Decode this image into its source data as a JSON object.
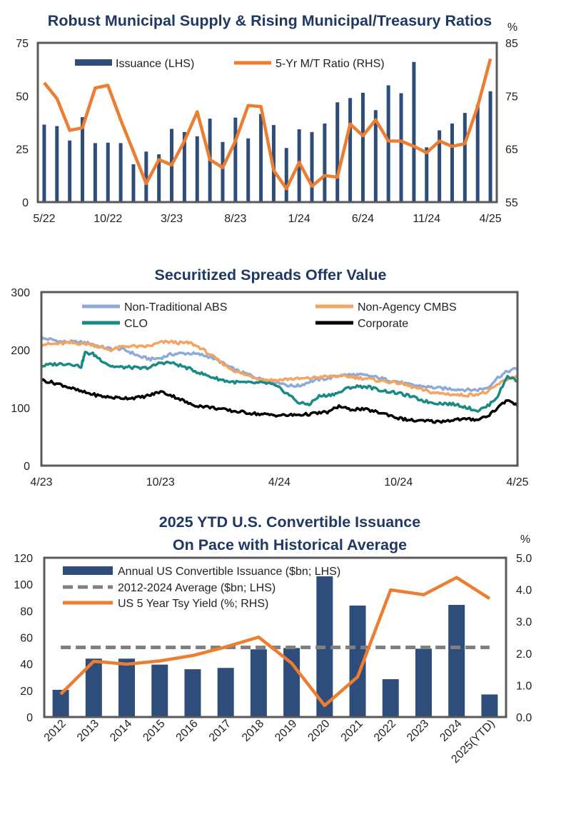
{
  "chart_data": [
    {
      "type": "bar+line",
      "title": "Robust Municipal Supply & Rising Municipal/Treasury Ratios",
      "right_unit": "%",
      "x": [
        "5/22",
        "6/22",
        "7/22",
        "8/22",
        "9/22",
        "10/22",
        "11/22",
        "12/22",
        "1/23",
        "2/23",
        "3/23",
        "4/23",
        "5/23",
        "6/23",
        "7/23",
        "8/23",
        "9/23",
        "10/23",
        "11/23",
        "12/23",
        "1/24",
        "2/24",
        "3/24",
        "4/24",
        "5/24",
        "6/24",
        "7/24",
        "8/24",
        "9/24",
        "10/24",
        "11/24",
        "12/24",
        "1/25",
        "2/25",
        "3/25",
        "4/25"
      ],
      "xtick_labels": [
        "5/22",
        "10/22",
        "3/23",
        "8/23",
        "1/24",
        "6/24",
        "11/24",
        "4/25"
      ],
      "xtick_indices": [
        0,
        5,
        10,
        15,
        20,
        25,
        30,
        35
      ],
      "series": [
        {
          "name": "Issuance (LHS)",
          "axis": "left",
          "kind": "bar",
          "color": "#2e4d7b",
          "values": [
            36.5,
            35.8,
            29,
            40,
            27.8,
            28,
            27.8,
            17.8,
            23.8,
            22.5,
            34.5,
            33,
            31,
            39.3,
            28.3,
            39.8,
            30,
            41.5,
            36.3,
            25.5,
            34.3,
            33,
            37,
            47,
            49,
            51.5,
            43.3,
            55,
            51.3,
            66,
            25.8,
            33.8,
            37,
            42,
            45.8,
            52.2
          ]
        },
        {
          "name": "5-Yr M/T Ratio (RHS)",
          "axis": "right",
          "kind": "line",
          "color": "#ed7d31",
          "values": [
            77.5,
            74.5,
            68.5,
            69,
            76.5,
            77,
            70.5,
            64.5,
            58.5,
            63,
            62,
            66.5,
            72,
            63,
            61.5,
            66.5,
            73.2,
            73,
            61,
            57.5,
            62.5,
            58,
            60,
            59.7,
            69.7,
            67.5,
            70.5,
            66.5,
            66.5,
            65.5,
            64.3,
            66.5,
            65.5,
            66,
            73,
            82
          ]
        }
      ],
      "left_axis": {
        "min": 0,
        "max": 75,
        "ticks": [
          0,
          25,
          50,
          75
        ]
      },
      "right_axis": {
        "min": 55,
        "max": 85,
        "ticks": [
          55,
          65,
          75,
          85
        ]
      },
      "legend": "top"
    },
    {
      "type": "line",
      "title": "Securitized Spreads Offer Value",
      "x_range": [
        0,
        24
      ],
      "x_unit": "months since 4/23",
      "xtick_labels": [
        "4/23",
        "10/23",
        "4/24",
        "10/24",
        "4/25"
      ],
      "xtick_positions": [
        0,
        6,
        12,
        18,
        24
      ],
      "yaxis": {
        "min": 0,
        "max": 300,
        "ticks": [
          0,
          100,
          200,
          300
        ]
      },
      "series": [
        {
          "name": "Non-Traditional ABS",
          "color": "#8eaadb",
          "points": [
            [
              0,
              220
            ],
            [
              0.5,
              218
            ],
            [
              1,
              214
            ],
            [
              1.5,
              214
            ],
            [
              2,
              213
            ],
            [
              2.5,
              211
            ],
            [
              3,
              205
            ],
            [
              3.5,
              202
            ],
            [
              4,
              202
            ],
            [
              4.5,
              196
            ],
            [
              5,
              188
            ],
            [
              5.5,
              184
            ],
            [
              6,
              186
            ],
            [
              6.5,
              192
            ],
            [
              7,
              194
            ],
            [
              7.5,
              194
            ],
            [
              8,
              192
            ],
            [
              8.5,
              188
            ],
            [
              9,
              180
            ],
            [
              9.5,
              170
            ],
            [
              10,
              162
            ],
            [
              10.5,
              157
            ],
            [
              11,
              150
            ],
            [
              11.5,
              146
            ],
            [
              12,
              144
            ],
            [
              12.5,
              138
            ],
            [
              13,
              138
            ],
            [
              13.5,
              145
            ],
            [
              14,
              149
            ],
            [
              14.5,
              151
            ],
            [
              15,
              156
            ],
            [
              15.5,
              157
            ],
            [
              16,
              157
            ],
            [
              16.5,
              155
            ],
            [
              17,
              152
            ],
            [
              17.5,
              148
            ],
            [
              18,
              145
            ],
            [
              18.5,
              140
            ],
            [
              19,
              138
            ],
            [
              19.5,
              136
            ],
            [
              20,
              134
            ],
            [
              20.5,
              133
            ],
            [
              21,
              132
            ],
            [
              21.5,
              131
            ],
            [
              22,
              131
            ],
            [
              22.5,
              135
            ],
            [
              23,
              152
            ],
            [
              23.5,
              163
            ],
            [
              24,
              168
            ]
          ]
        },
        {
          "name": "Non-Agency CMBS",
          "color": "#f4a460",
          "points": [
            [
              0,
              210
            ],
            [
              0.5,
              210
            ],
            [
              1,
              211
            ],
            [
              1.5,
              212
            ],
            [
              2,
              211
            ],
            [
              2.5,
              210
            ],
            [
              3,
              204
            ],
            [
              3.5,
              200
            ],
            [
              4,
              205
            ],
            [
              4.5,
              207
            ],
            [
              5,
              205
            ],
            [
              5.5,
              207
            ],
            [
              6,
              213
            ],
            [
              6.5,
              214
            ],
            [
              7,
              212
            ],
            [
              7.5,
              212
            ],
            [
              8,
              204
            ],
            [
              8.5,
              192
            ],
            [
              9,
              180
            ],
            [
              9.5,
              168
            ],
            [
              10,
              160
            ],
            [
              10.5,
              155
            ],
            [
              11,
              150
            ],
            [
              11.5,
              148
            ],
            [
              12,
              148
            ],
            [
              12.5,
              150
            ],
            [
              13,
              150
            ],
            [
              13.5,
              151
            ],
            [
              14,
              153
            ],
            [
              14.5,
              154
            ],
            [
              15,
              155
            ],
            [
              15.5,
              154
            ],
            [
              16,
              152
            ],
            [
              16.5,
              150
            ],
            [
              17,
              147
            ],
            [
              17.5,
              145
            ],
            [
              18,
              143
            ],
            [
              18.5,
              138
            ],
            [
              19,
              133
            ],
            [
              19.5,
              128
            ],
            [
              20,
              125
            ],
            [
              20.5,
              124
            ],
            [
              21,
              122
            ],
            [
              21.5,
              122
            ],
            [
              22,
              124
            ],
            [
              22.5,
              127
            ],
            [
              23,
              140
            ],
            [
              23.5,
              150
            ],
            [
              24,
              156
            ]
          ]
        },
        {
          "name": "CLO",
          "color": "#1a8a84",
          "points": [
            [
              0,
              172
            ],
            [
              0.5,
              175
            ],
            [
              1,
              176
            ],
            [
              1.5,
              176
            ],
            [
              2,
              171
            ],
            [
              2.2,
              195
            ],
            [
              2.6,
              193
            ],
            [
              3,
              183
            ],
            [
              3.5,
              172
            ],
            [
              4,
              170
            ],
            [
              4.5,
              170
            ],
            [
              5,
              168
            ],
            [
              5.5,
              170
            ],
            [
              6,
              178
            ],
            [
              6.5,
              178
            ],
            [
              7,
              173
            ],
            [
              7.5,
              167
            ],
            [
              8,
              160
            ],
            [
              8.5,
              154
            ],
            [
              9,
              149
            ],
            [
              9.5,
              145
            ],
            [
              10,
              144
            ],
            [
              10.5,
              143
            ],
            [
              11,
              143
            ],
            [
              11.5,
              142
            ],
            [
              12,
              134
            ],
            [
              12.5,
              122
            ],
            [
              13,
              108
            ],
            [
              13.5,
              106
            ],
            [
              14,
              120
            ],
            [
              14.5,
              122
            ],
            [
              15,
              126
            ],
            [
              15.5,
              135
            ],
            [
              16,
              137
            ],
            [
              16.5,
              136
            ],
            [
              17,
              131
            ],
            [
              17.5,
              128
            ],
            [
              18,
              125
            ],
            [
              18.5,
              121
            ],
            [
              19,
              115
            ],
            [
              19.5,
              110
            ],
            [
              20,
              108
            ],
            [
              20.5,
              107
            ],
            [
              21,
              105
            ],
            [
              21.5,
              100
            ],
            [
              22,
              95
            ],
            [
              22.5,
              103
            ],
            [
              23,
              120
            ],
            [
              23.5,
              155
            ],
            [
              24,
              146
            ]
          ]
        },
        {
          "name": "Corporate",
          "color": "#000000",
          "points": [
            [
              0,
              148
            ],
            [
              0.5,
              144
            ],
            [
              1,
              140
            ],
            [
              1.5,
              134
            ],
            [
              2,
              128
            ],
            [
              2.5,
              124
            ],
            [
              3,
              120
            ],
            [
              3.5,
              118
            ],
            [
              4,
              117
            ],
            [
              4.5,
              117
            ],
            [
              5,
              118
            ],
            [
              5.5,
              122
            ],
            [
              6,
              128
            ],
            [
              6.5,
              122
            ],
            [
              7,
              115
            ],
            [
              7.5,
              106
            ],
            [
              8,
              103
            ],
            [
              8.5,
              101
            ],
            [
              9,
              98
            ],
            [
              9.5,
              95
            ],
            [
              10,
              93
            ],
            [
              10.5,
              91
            ],
            [
              11,
              89
            ],
            [
              11.5,
              88
            ],
            [
              12,
              87
            ],
            [
              12.5,
              87
            ],
            [
              13,
              88
            ],
            [
              13.5,
              89
            ],
            [
              14,
              91
            ],
            [
              14.5,
              93
            ],
            [
              15,
              103
            ],
            [
              15.5,
              97
            ],
            [
              16,
              98
            ],
            [
              16.5,
              96
            ],
            [
              17,
              92
            ],
            [
              17.5,
              88
            ],
            [
              18,
              82
            ],
            [
              18.5,
              79
            ],
            [
              19,
              77
            ],
            [
              19.5,
              77
            ],
            [
              20,
              76
            ],
            [
              20.5,
              78
            ],
            [
              21,
              80
            ],
            [
              21.5,
              80
            ],
            [
              22,
              80
            ],
            [
              22.5,
              86
            ],
            [
              23,
              100
            ],
            [
              23.5,
              114
            ],
            [
              24,
              103
            ]
          ]
        }
      ],
      "legend": "top, two columns"
    },
    {
      "type": "bar+line",
      "title_lines": [
        "2025 YTD U.S. Convertible Issuance",
        "On Pace with Historical Average"
      ],
      "right_unit": "%",
      "categories": [
        "2012",
        "2013",
        "2014",
        "2015",
        "2016",
        "2017",
        "2018",
        "2019",
        "2020",
        "2021",
        "2022",
        "2023",
        "2024",
        "2025(YTD)"
      ],
      "series": [
        {
          "name": "Annual US Convertible Issuance ($bn; LHS)",
          "axis": "left",
          "kind": "bar",
          "color": "#2e4d7b",
          "values": [
            20.5,
            44,
            44,
            39.5,
            36,
            37,
            51,
            52,
            106,
            84,
            28.5,
            51.5,
            84.5,
            17
          ]
        },
        {
          "name": "2012-2024 Average ($bn; LHS)",
          "axis": "left",
          "kind": "dashed-line",
          "color": "#808080",
          "values": [
            52.5,
            52.5,
            52.5,
            52.5,
            52.5,
            52.5,
            52.5,
            52.5,
            52.5,
            52.5,
            52.5,
            52.5,
            52.5,
            52.5
          ]
        },
        {
          "name": "US 5 Year Tsy Yield (%; RHS)",
          "axis": "right",
          "kind": "line",
          "color": "#ed7d31",
          "values": [
            0.72,
            1.75,
            1.66,
            1.76,
            1.93,
            2.2,
            2.51,
            1.69,
            0.36,
            1.26,
            3.99,
            3.84,
            4.38,
            3.72
          ]
        }
      ],
      "left_axis": {
        "min": 0,
        "max": 120,
        "ticks": [
          0,
          20,
          40,
          60,
          80,
          100,
          120
        ]
      },
      "right_axis": {
        "min": 0.0,
        "max": 5.0,
        "ticks": [
          "0.0",
          "1.0",
          "2.0",
          "3.0",
          "4.0",
          "5.0"
        ]
      },
      "legend": "top-left"
    }
  ]
}
